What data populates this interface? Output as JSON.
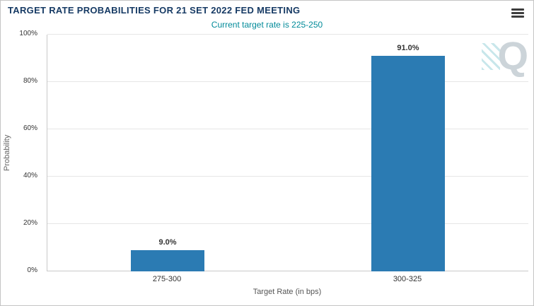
{
  "header": {
    "menu_icon": "hamburger"
  },
  "chart_data": {
    "type": "bar",
    "title": "TARGET RATE PROBABILITIES FOR 21 SET 2022 FED MEETING",
    "subtitle": "Current target rate is 225-250",
    "categories": [
      "275-300",
      "300-325"
    ],
    "values": [
      9.0,
      91.0
    ],
    "data_labels": [
      "9.0%",
      "91.0%"
    ],
    "xlabel": "Target Rate (in bps)",
    "ylabel": "Probability",
    "ylim": [
      0,
      100
    ],
    "yticks": [
      0,
      20,
      40,
      60,
      80,
      100
    ],
    "ytick_labels": [
      "0%",
      "20%",
      "40%",
      "60%",
      "80%",
      "100%"
    ],
    "grid": true,
    "legend": "none",
    "bar_color": "#2b7bb3",
    "watermark": "Q"
  },
  "colors": {
    "title_text": "#163a64",
    "subtitle_text": "#008a99",
    "bar": "#2b7bb3",
    "gridline": "#e6e6e6",
    "axis_line": "#c9c9c9",
    "tick_text": "#333333"
  }
}
